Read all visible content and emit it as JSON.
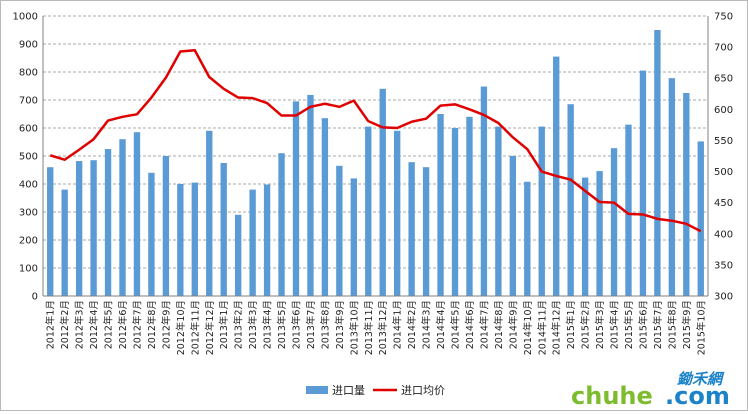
{
  "chart_data": {
    "type": "bar+line",
    "title": "",
    "categories": [
      "2012年1月",
      "2012年2月",
      "2012年3月",
      "2012年4月",
      "2012年5月",
      "2012年6月",
      "2012年7月",
      "2012年8月",
      "2012年9月",
      "2012年10月",
      "2012年11月",
      "2012年12月",
      "2013年1月",
      "2013年2月",
      "2013年3月",
      "2013年4月",
      "2013年5月",
      "2013年6月",
      "2013年7月",
      "2013年8月",
      "2013年9月",
      "2013年10月",
      "2013年11月",
      "2013年12月",
      "2014年1月",
      "2014年2月",
      "2014年3月",
      "2014年4月",
      "2014年5月",
      "2014年6月",
      "2014年7月",
      "2014年8月",
      "2014年9月",
      "2014年10月",
      "2014年11月",
      "2014年12月",
      "2015年1月",
      "2015年2月",
      "2015年3月",
      "2015年4月",
      "2015年5月",
      "2015年6月",
      "2015年7月",
      "2015年8月",
      "2015年9月",
      "2015年10月"
    ],
    "series": [
      {
        "name": "进口量",
        "type": "bar",
        "axis": "left",
        "color": "#5b9bd5",
        "values": [
          460,
          380,
          482,
          485,
          525,
          560,
          585,
          440,
          500,
          400,
          405,
          590,
          475,
          290,
          380,
          398,
          510,
          695,
          718,
          635,
          465,
          420,
          605,
          740,
          590,
          478,
          460,
          650,
          600,
          640,
          748,
          605,
          500,
          408,
          605,
          855,
          685,
          423,
          446,
          528,
          612,
          805,
          950,
          778,
          725,
          552
        ]
      },
      {
        "name": "进口均价",
        "type": "line",
        "axis": "right",
        "color": "#e00000",
        "values": [
          526,
          519,
          535,
          552,
          582,
          588,
          592,
          619,
          651,
          693,
          695,
          652,
          633,
          619,
          618,
          610,
          590,
          590,
          604,
          609,
          604,
          614,
          581,
          571,
          570,
          580,
          585,
          606,
          608,
          600,
          591,
          578,
          555,
          536,
          500,
          493,
          487,
          469,
          451,
          450,
          432,
          431,
          424,
          421,
          416,
          404
        ]
      }
    ],
    "y_left": {
      "min": 0,
      "max": 1000,
      "ticks": [
        "0",
        "100",
        "200",
        "300",
        "400",
        "500",
        "600",
        "700",
        "800",
        "900",
        "1000"
      ]
    },
    "y_right": {
      "min": 300,
      "max": 750,
      "ticks": [
        "300",
        "350",
        "400",
        "450",
        "500",
        "550",
        "600",
        "650",
        "700",
        "750"
      ]
    },
    "grid": true,
    "legend": {
      "position": "bottom",
      "items": [
        "进口量",
        "进口均价"
      ]
    }
  },
  "watermark": {
    "part1": "chuhe",
    "part2": ".com",
    "cn": "鋤禾網"
  }
}
